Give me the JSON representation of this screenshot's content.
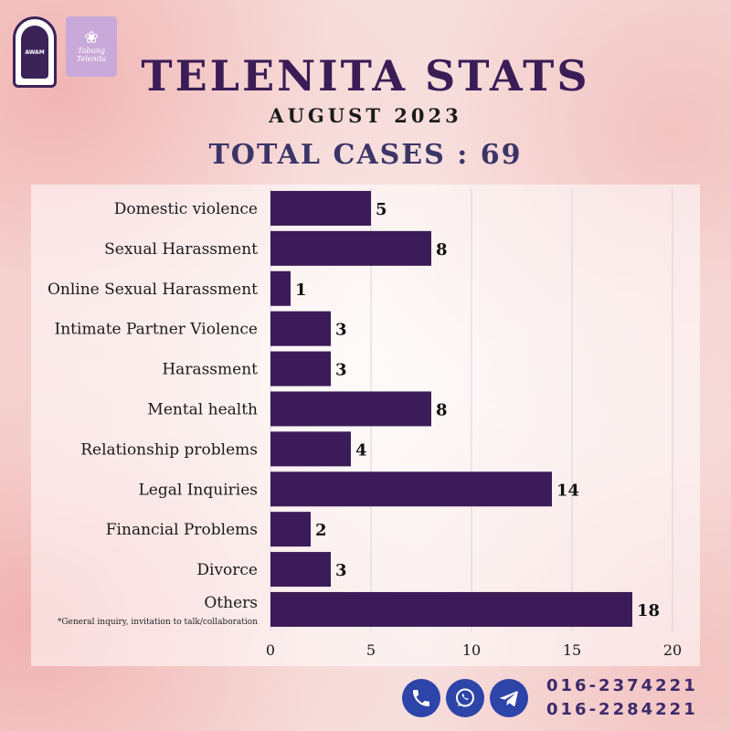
{
  "header": {
    "title": "TELENITA STATS",
    "subtitle": "AUGUST 2023",
    "total": "TOTAL CASES : 69"
  },
  "logos": {
    "awam_text": "AWAM",
    "telenita_text": "Tabung Telenita"
  },
  "chart_data": {
    "type": "bar",
    "orientation": "horizontal",
    "categories": [
      "Domestic violence",
      "Sexual Harassment",
      "Online Sexual Harassment",
      "Intimate Partner Violence",
      "Harassment",
      "Mental health",
      "Relationship problems",
      "Legal Inquiries",
      "Financial Problems",
      "Divorce",
      "Others"
    ],
    "values": [
      5,
      8,
      1,
      3,
      3,
      8,
      4,
      14,
      2,
      3,
      18
    ],
    "footnote": "*General inquiry, invitation to talk/collaboration",
    "xlim": [
      0,
      20
    ],
    "xticks": [
      0,
      5,
      10,
      15,
      20
    ],
    "grid": true,
    "bar_color": "#3b1c58"
  },
  "footer": {
    "icons": [
      "phone-icon",
      "whatsapp-icon",
      "telegram-icon"
    ],
    "phones": [
      "016-2374221",
      "016-2284221"
    ]
  },
  "colors": {
    "title": "#3a1d56",
    "total": "#3c3568",
    "icon_bg": "#2d44a8"
  }
}
